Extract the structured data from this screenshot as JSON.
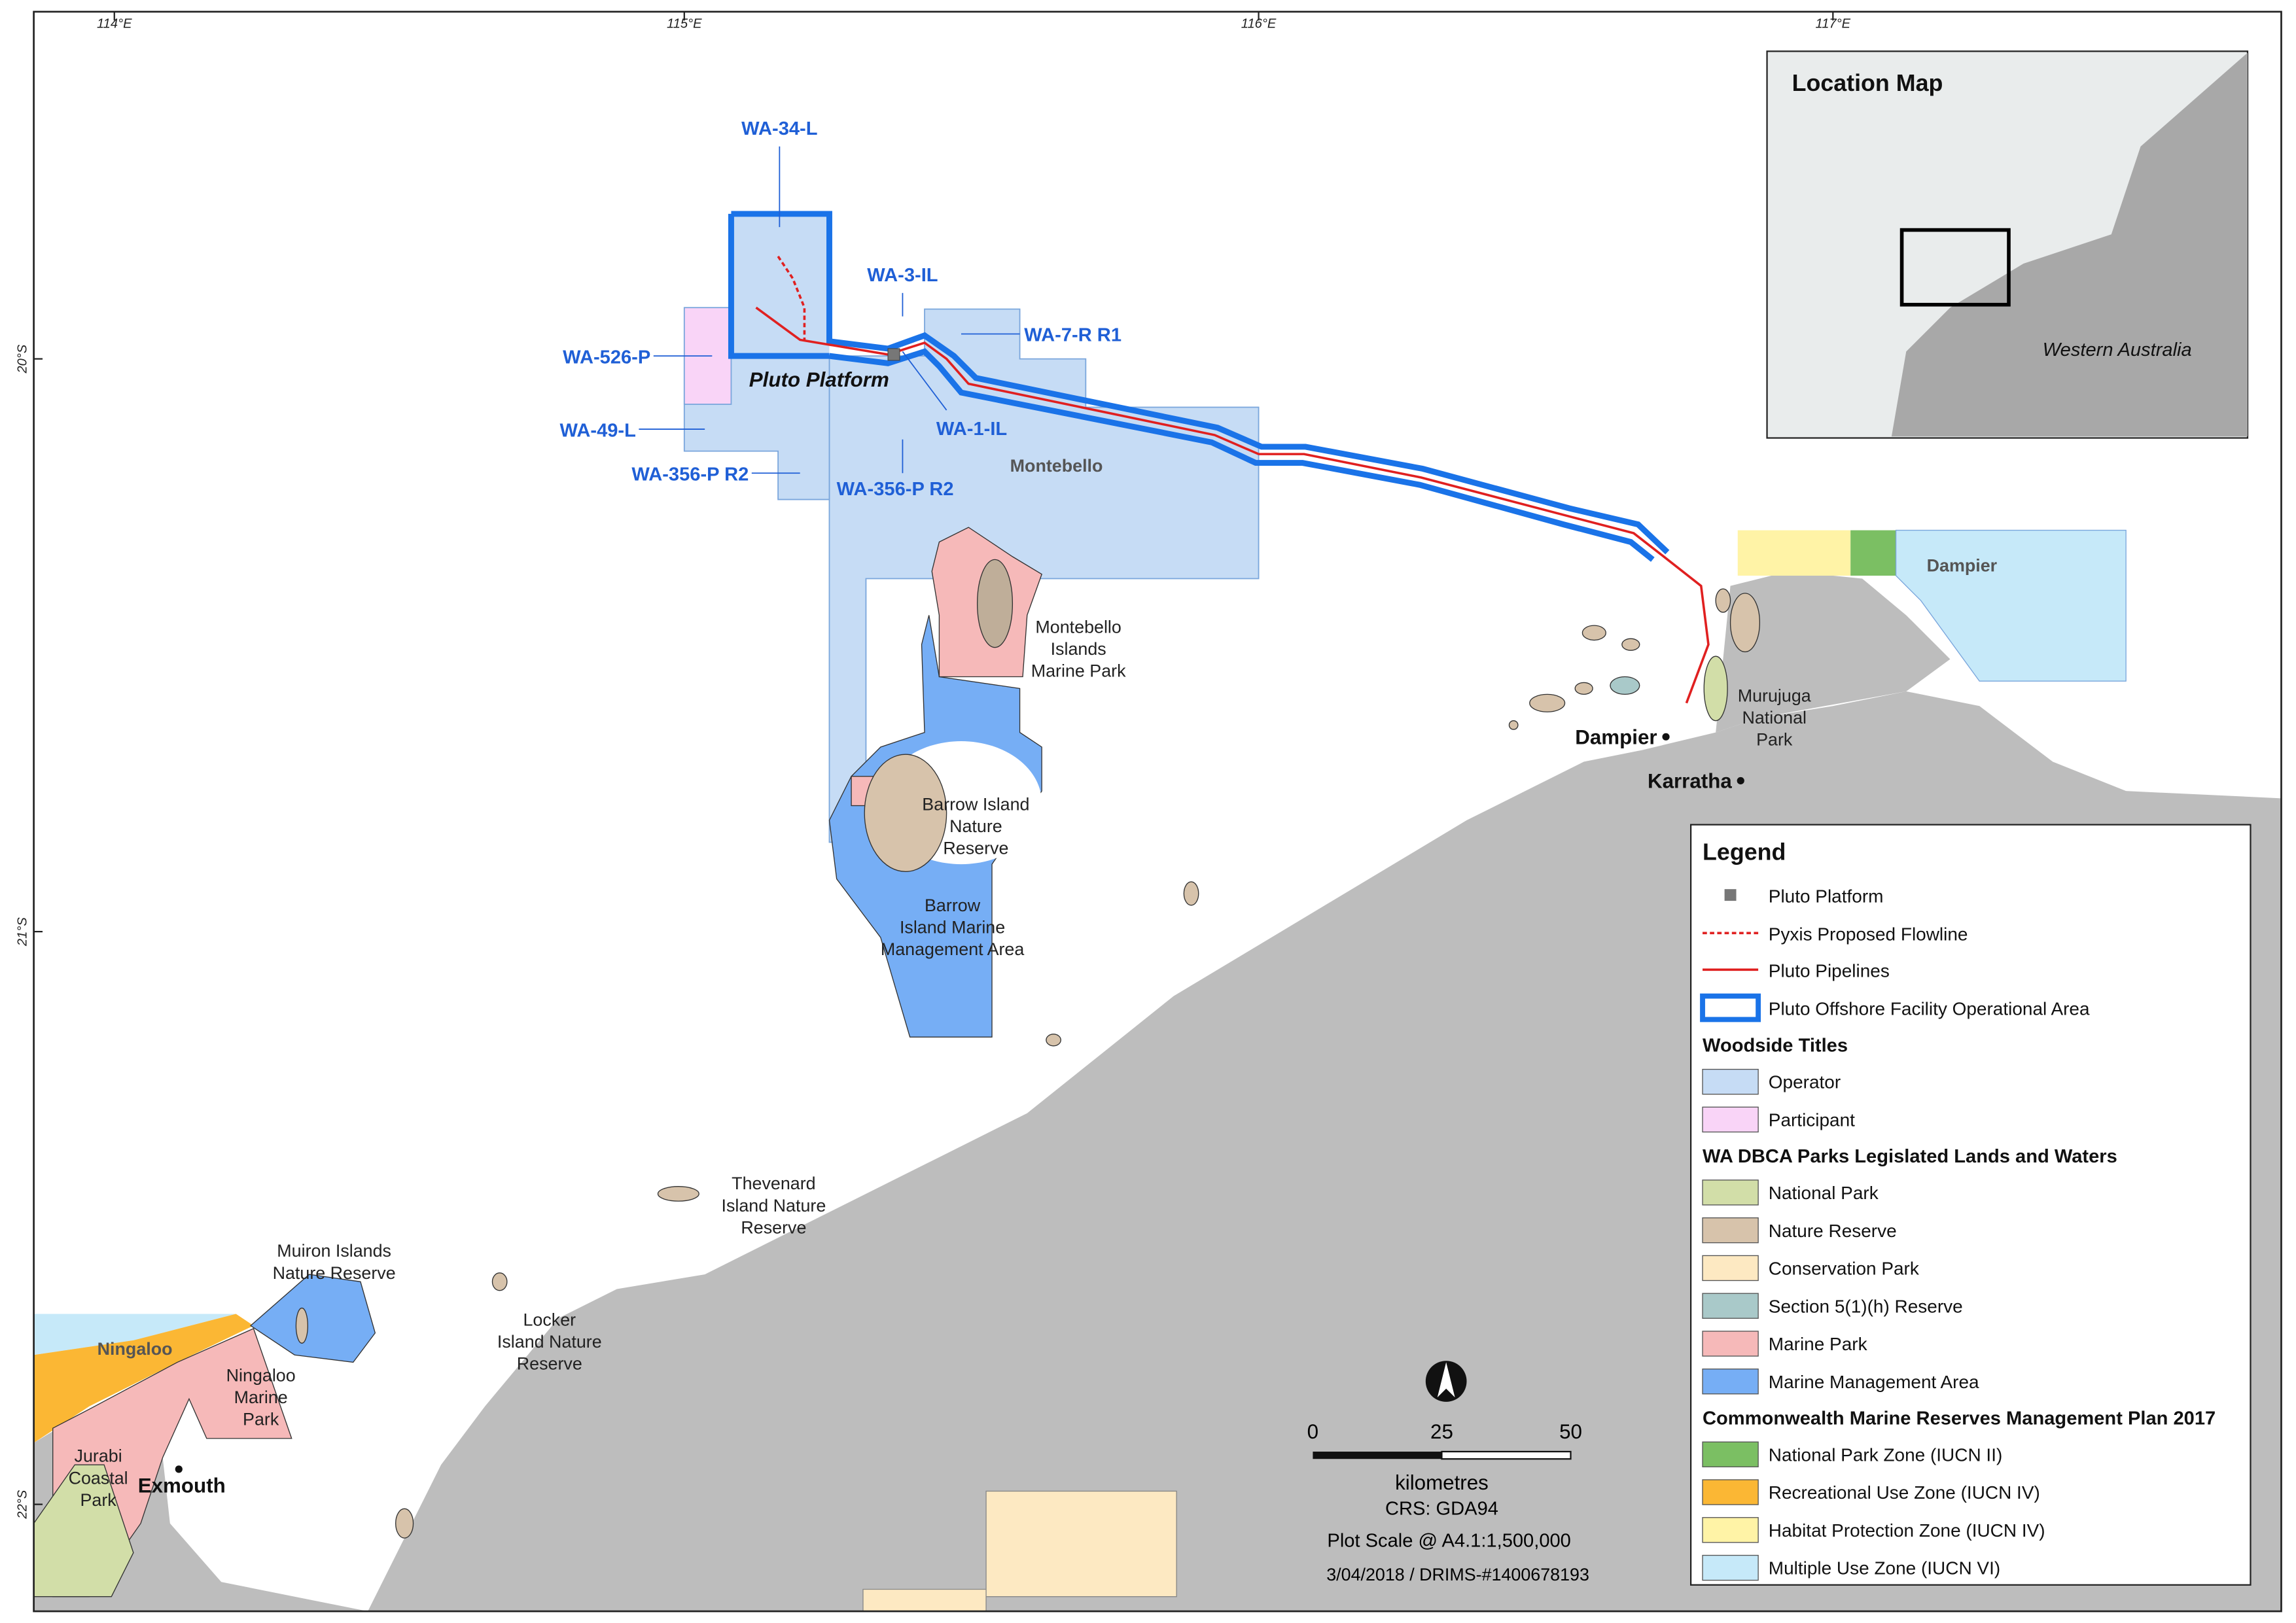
{
  "graticule": {
    "longitudes": [
      "114°E",
      "115°E",
      "116°E",
      "117°E"
    ],
    "latitudes": [
      "20°S",
      "21°S",
      "22°S"
    ]
  },
  "permits": [
    "WA-34-L",
    "WA-3-IL",
    "WA-7-R R1",
    "WA-526-P",
    "WA-1-IL",
    "WA-49-L",
    "WA-356-P R2",
    "WA-356-P R2"
  ],
  "platform_label": "Pluto Platform",
  "zones": {
    "montebello": "Montebello",
    "dampier": "Dampier",
    "ningaloo": "Ningaloo"
  },
  "places": {
    "montebello_park": [
      "Montebello",
      "Islands",
      "Marine Park"
    ],
    "barrow_reserve": [
      "Barrow Island",
      "Nature",
      "Reserve"
    ],
    "barrow_mma": [
      "Barrow",
      "Island Marine",
      "Management Area"
    ],
    "murujuga": [
      "Murujuga",
      "National",
      "Park"
    ],
    "thevenard": [
      "Thevenard",
      "Island Nature",
      "Reserve"
    ],
    "muiron": [
      "Muiron Islands",
      "Nature Reserve"
    ],
    "locker": [
      "Locker",
      "Island Nature",
      "Reserve"
    ],
    "ningaloo_park": [
      "Ningaloo",
      "Marine",
      "Park"
    ],
    "jurabi": [
      "Jurabi",
      "Coastal",
      "Park"
    ]
  },
  "towns": {
    "dampier": "Dampier",
    "karratha": "Karratha",
    "exmouth": "Exmouth"
  },
  "location_map": {
    "title": "Location Map",
    "region": "Western Australia"
  },
  "legend": {
    "title": "Legend",
    "entries": [
      "Pluto Platform",
      "Pyxis Proposed Flowline",
      "Pluto Pipelines",
      "Pluto Offshore Facility Operational Area"
    ],
    "sections": [
      {
        "heading": "Woodside Titles",
        "items": [
          {
            "label": "Operator",
            "color": "#c6dcf5"
          },
          {
            "label": "Participant",
            "color": "#f9d4f7"
          }
        ]
      },
      {
        "heading": "WA DBCA Parks Legislated Lands and Waters",
        "items": [
          {
            "label": "National Park",
            "color": "#d2dea8"
          },
          {
            "label": "Nature Reserve",
            "color": "#d7c3ab"
          },
          {
            "label": "Conservation Park",
            "color": "#fde9c2"
          },
          {
            "label": "Section 5(1)(h) Reserve",
            "color": "#a9c9c9"
          },
          {
            "label": "Marine Park",
            "color": "#f6b9b9"
          },
          {
            "label": "Marine Management Area",
            "color": "#76aef5"
          }
        ]
      },
      {
        "heading": "Commonwealth Marine Reserves Management Plan 2017",
        "items": [
          {
            "label": "National Park Zone (IUCN II)",
            "color": "#7bbf63"
          },
          {
            "label": "Recreational Use Zone (IUCN IV)",
            "color": "#fbb734"
          },
          {
            "label": "Habitat Protection Zone (IUCN IV)",
            "color": "#fff3a6"
          },
          {
            "label": "Multiple Use Zone (IUCN VI)",
            "color": "#c6e9f9"
          }
        ]
      }
    ]
  },
  "scale_bar": {
    "ticks": [
      "0",
      "25",
      "50"
    ],
    "unit": "kilometres"
  },
  "footer": {
    "crs": "CRS: GDA94",
    "plot_scale": "Plot Scale @ A4.1:1,500,000",
    "reference": "3/04/2018 / DRIMS-#1400678193"
  }
}
